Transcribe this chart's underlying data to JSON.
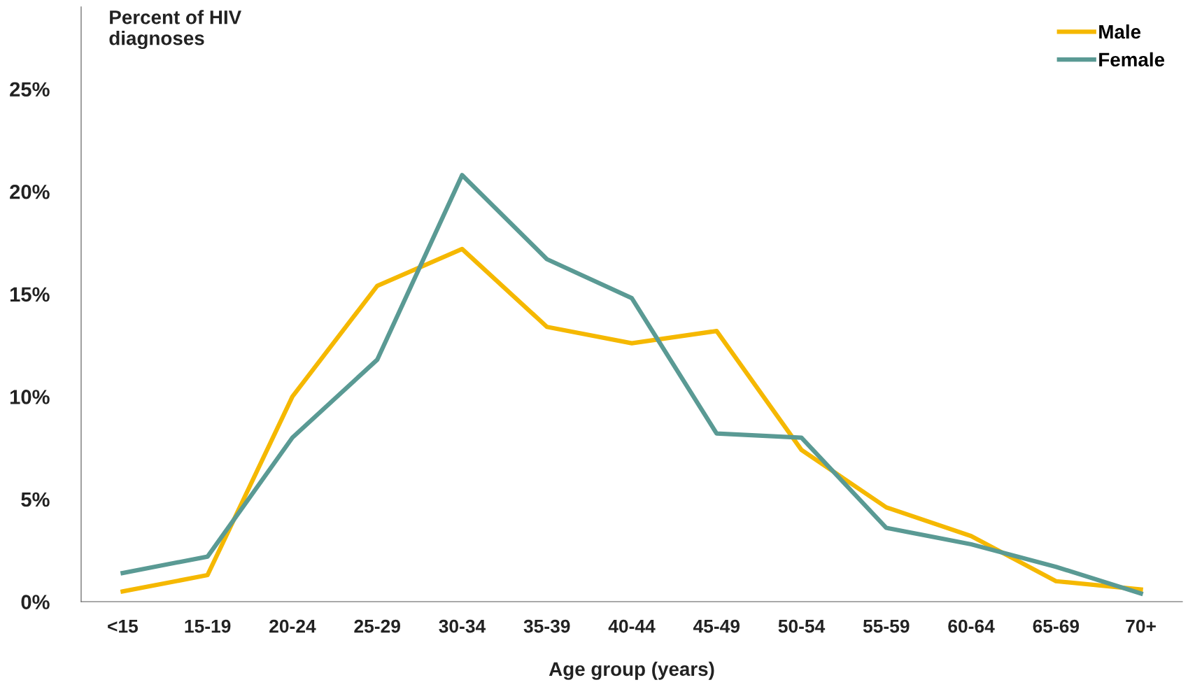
{
  "chart_data": {
    "type": "line",
    "ylabel": "Percent of HIV\ndiagnoses",
    "xlabel": "Age group (years)",
    "categories": [
      "<15",
      "15-19",
      "20-24",
      "25-29",
      "30-34",
      "35-39",
      "40-44",
      "45-49",
      "50-54",
      "55-59",
      "60-64",
      "65-69",
      "70+"
    ],
    "series": [
      {
        "name": "Male",
        "color": "#f5b800",
        "values": [
          0.5,
          1.3,
          10.0,
          15.4,
          17.2,
          13.4,
          12.6,
          13.2,
          7.4,
          4.6,
          3.2,
          1.0,
          0.6
        ]
      },
      {
        "name": "Female",
        "color": "#5a9a94",
        "values": [
          1.4,
          2.2,
          8.0,
          11.8,
          20.8,
          16.7,
          14.8,
          8.2,
          8.0,
          3.6,
          2.8,
          1.7,
          0.4
        ]
      }
    ],
    "ylim": [
      0,
      29
    ],
    "yticks": [
      {
        "value": 0,
        "label": "0%"
      },
      {
        "value": 5,
        "label": "5%"
      },
      {
        "value": 10,
        "label": "10%"
      },
      {
        "value": 15,
        "label": "15%"
      },
      {
        "value": 20,
        "label": "20%"
      },
      {
        "value": 25,
        "label": "25%"
      }
    ],
    "grid": false,
    "legend": "top right",
    "marker": "none",
    "line_style": "solid"
  }
}
